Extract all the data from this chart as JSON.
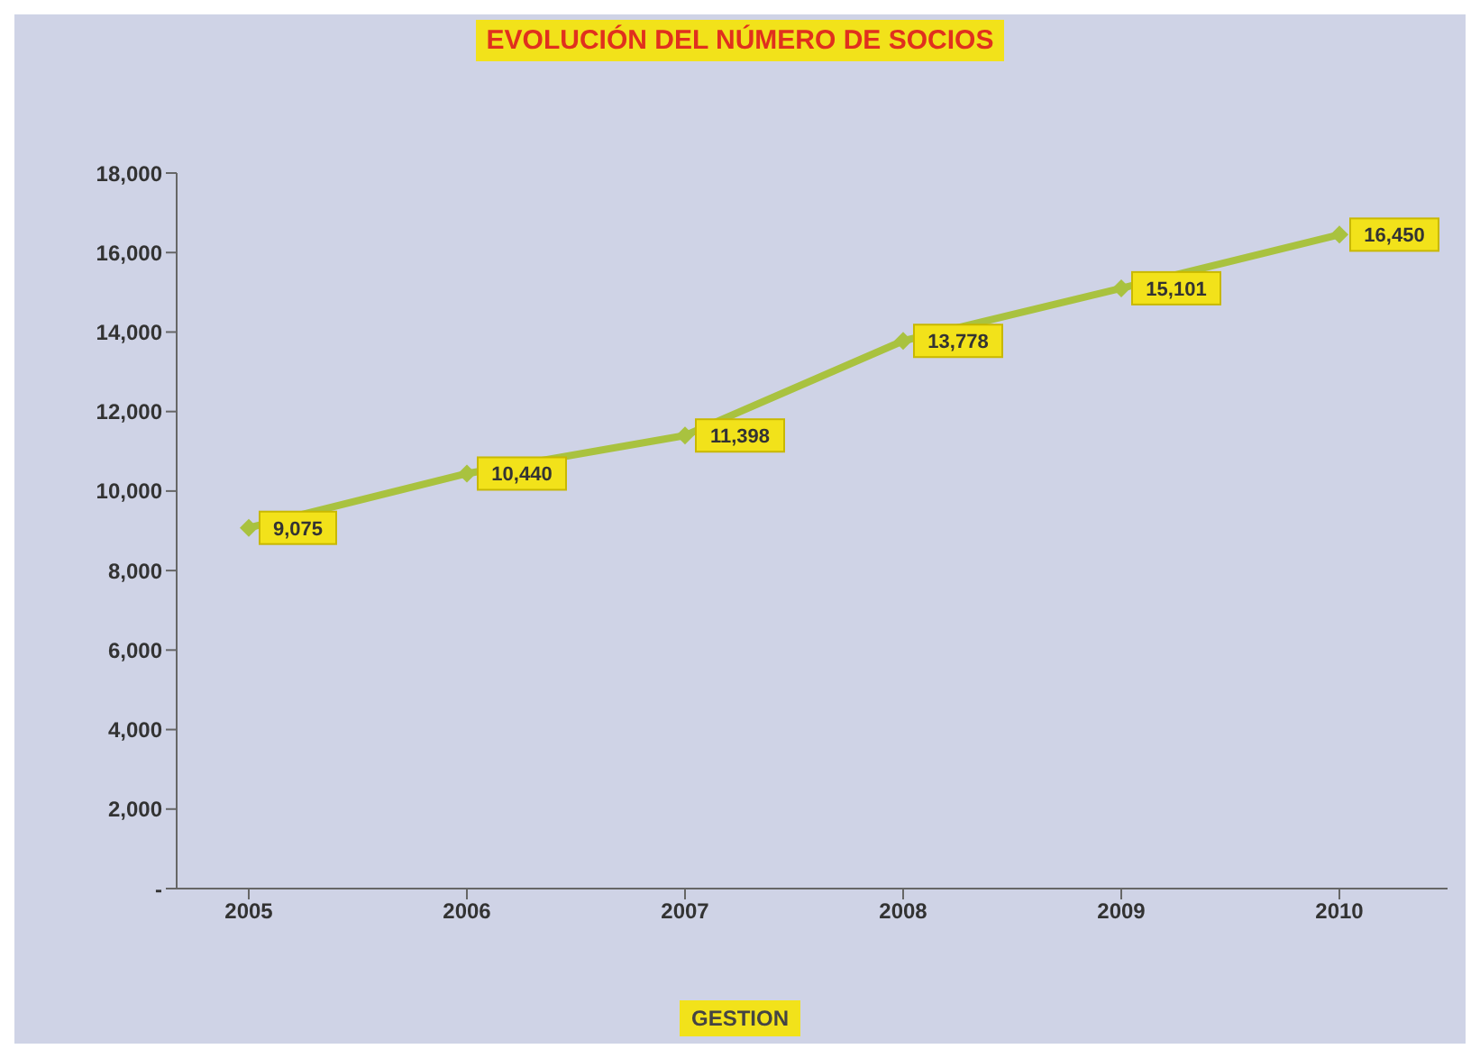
{
  "chart_data": {
    "type": "line",
    "title": "EVOLUCIÓN DEL NÚMERO DE SOCIOS",
    "xlabel": "GESTION",
    "categories": [
      "2005",
      "2006",
      "2007",
      "2008",
      "2009",
      "2010"
    ],
    "series": [
      {
        "color": "#a9c23f",
        "values": [
          9075,
          10440,
          11398,
          13778,
          15101,
          16450
        ],
        "value_labels": [
          "9,075",
          "10,440",
          "11,398",
          "13,778",
          "15,101",
          "16,450"
        ]
      }
    ],
    "ylim": [
      0,
      18000
    ],
    "yticks": [
      {
        "value": 0,
        "label": "-"
      },
      {
        "value": 2000,
        "label": "2,000"
      },
      {
        "value": 4000,
        "label": "4,000"
      },
      {
        "value": 6000,
        "label": "6,000"
      },
      {
        "value": 8000,
        "label": "8,000"
      },
      {
        "value": 10000,
        "label": "10,000"
      },
      {
        "value": 12000,
        "label": "12,000"
      },
      {
        "value": 14000,
        "label": "14,000"
      },
      {
        "value": 16000,
        "label": "16,000"
      },
      {
        "value": 18000,
        "label": "18,000"
      }
    ],
    "marker": "diamond",
    "grid": false,
    "legend": false
  }
}
